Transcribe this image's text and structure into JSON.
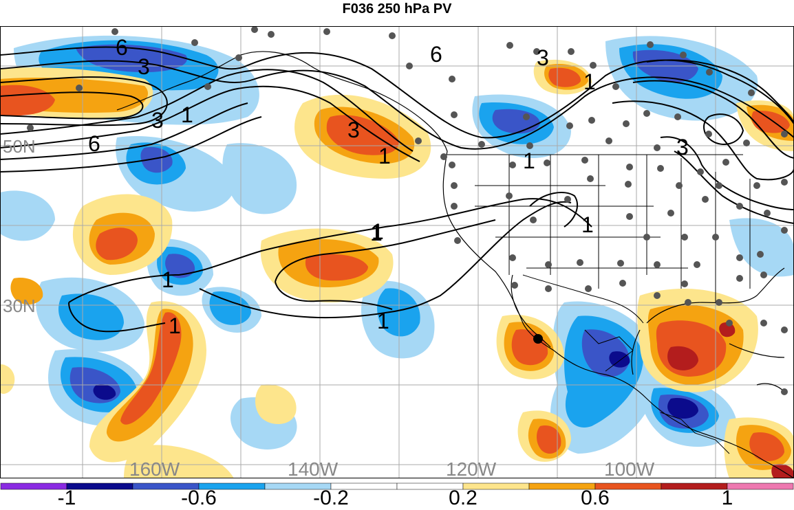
{
  "title": "F036 250 hPa PV",
  "lon_labels": [
    "160W",
    "140W",
    "120W",
    "100W"
  ],
  "lat_labels": [
    "50N",
    "30N"
  ],
  "contour_labels": [
    "6",
    "3",
    "1",
    "3",
    "6",
    "1",
    "3",
    "1",
    "6",
    "3",
    "1",
    "1",
    "1",
    "3",
    "1",
    "1",
    "1",
    "1"
  ],
  "colorbar": {
    "tick_labels": [
      "-1",
      "-0.6",
      "-0.2",
      "0.2",
      "0.6",
      "1"
    ],
    "colors": [
      "#8a2be2",
      "#0b0b8c",
      "#3a55c8",
      "#1aa3ee",
      "#a6d8f5",
      "#ffffff",
      "#ffffff",
      "#fde58c",
      "#f5a311",
      "#e8541f",
      "#b31d1d",
      "#ee79b0"
    ]
  },
  "colors": {
    "dark_blue": "#0b0b8c",
    "mid_blue": "#3a55c8",
    "blue": "#1aa3ee",
    "light_blue": "#a6d8f5",
    "light_yellow": "#fde58c",
    "orange": "#f5a311",
    "red_orange": "#e8541f",
    "dark_red": "#b31d1d"
  }
}
